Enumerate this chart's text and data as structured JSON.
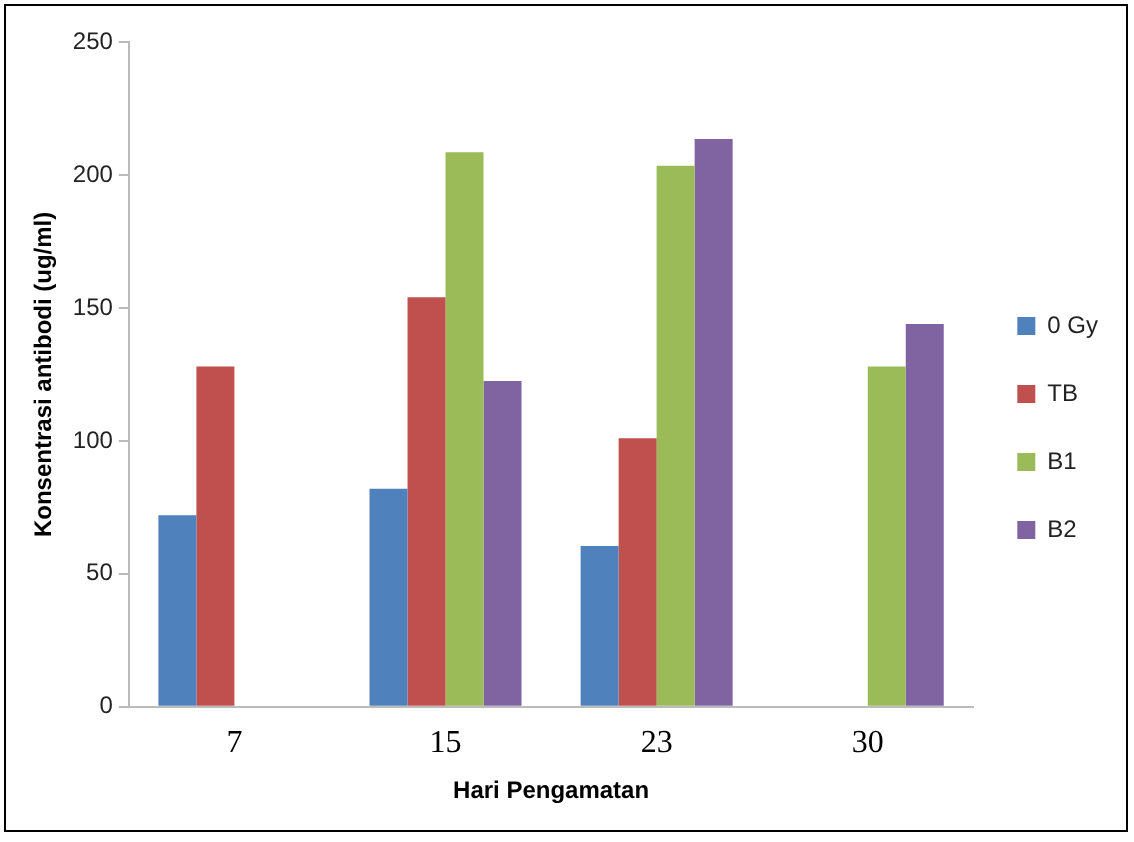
{
  "chart_data": {
    "type": "bar",
    "xlabel": "Hari Pengamatan",
    "ylabel": "Konsentrasi antibodi (ug/ml)",
    "categories": [
      "7",
      "15",
      "23",
      "30"
    ],
    "series": [
      {
        "name": "0 Gy",
        "color": "#4f81bd",
        "values": [
          72,
          82,
          60.5,
          null
        ]
      },
      {
        "name": "TB",
        "color": "#c0504d",
        "values": [
          128,
          154,
          101,
          null
        ]
      },
      {
        "name": "B1",
        "color": "#9bbb59",
        "values": [
          null,
          208.5,
          203.5,
          128
        ]
      },
      {
        "name": "B2",
        "color": "#8064a2",
        "values": [
          null,
          122.5,
          213.5,
          144
        ]
      }
    ],
    "ylim": [
      0,
      250
    ],
    "yticks": [
      0,
      50,
      100,
      150,
      200,
      250
    ],
    "grid": false,
    "legend": "right"
  }
}
